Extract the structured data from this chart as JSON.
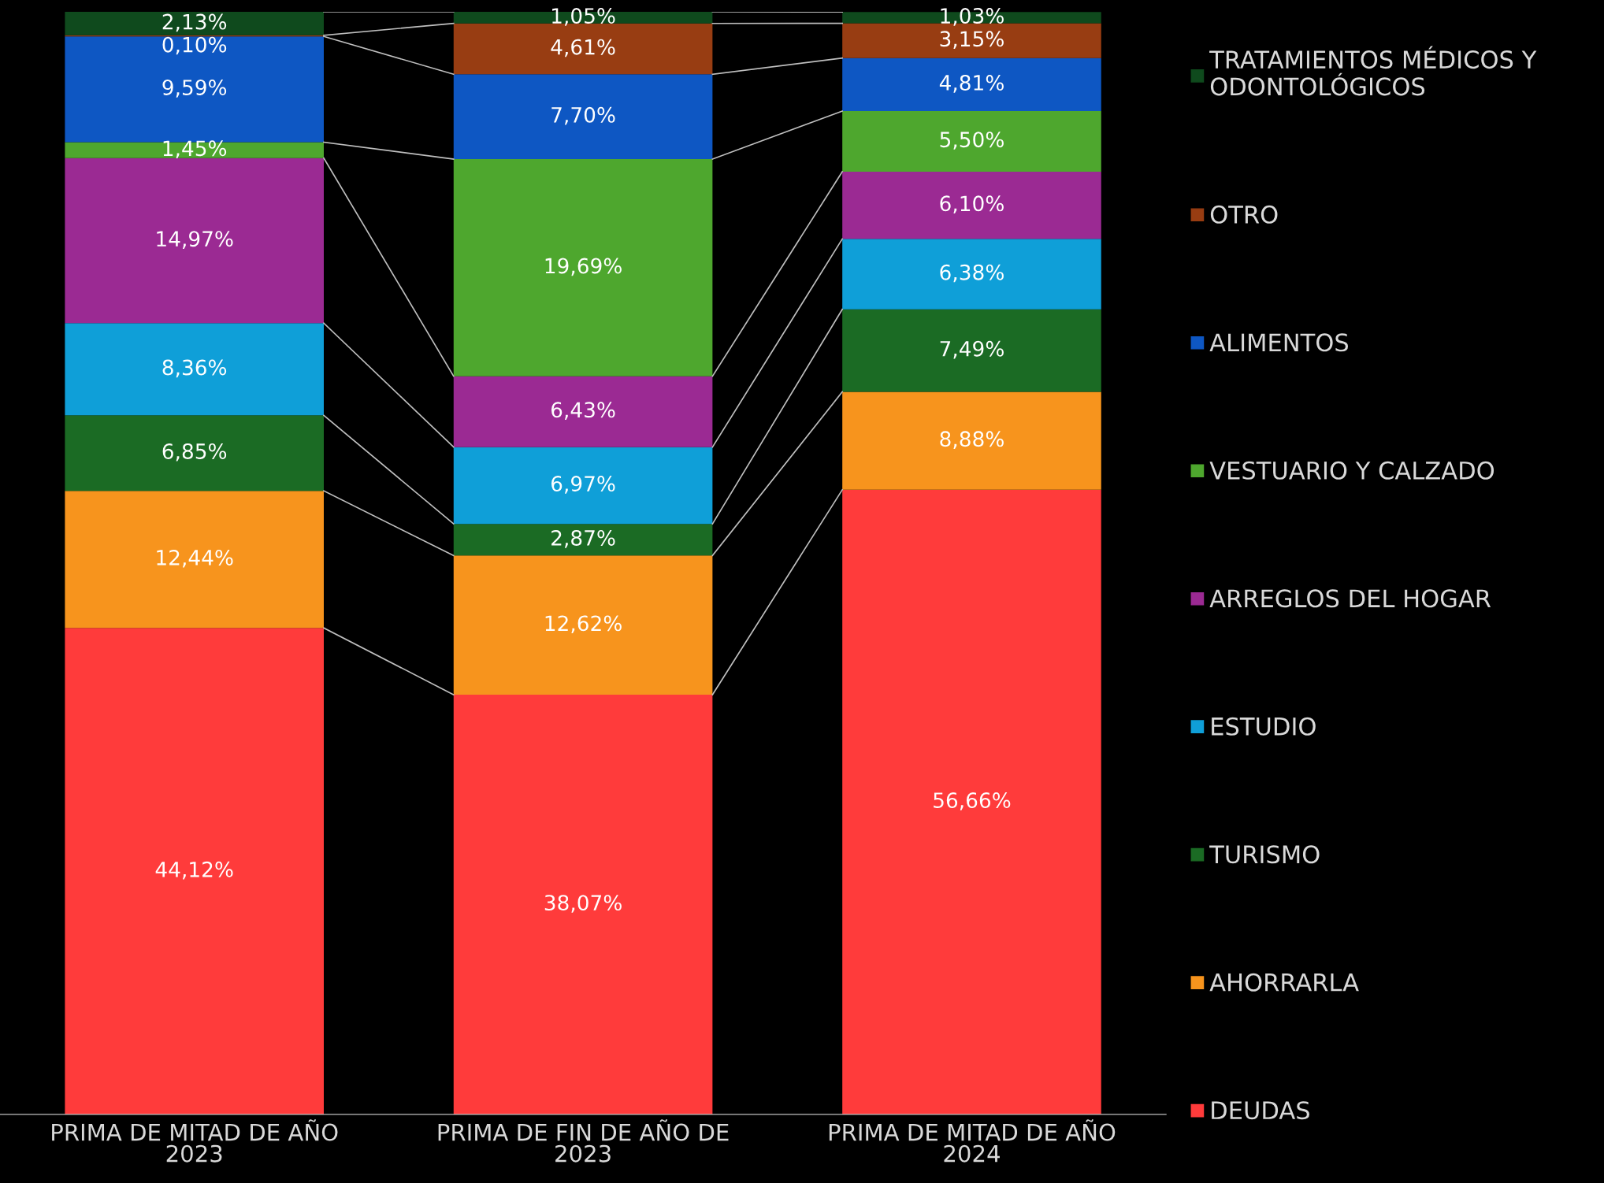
{
  "chart_data": {
    "type": "bar",
    "stacked": true,
    "legend": "right",
    "grid": false,
    "tick_labels": "x",
    "categories": [
      "PRIMA DE MITAD DE AÑO\n2023",
      "PRIMA DE FIN DE AÑO DE\n2023",
      "PRIMA DE MITAD DE AÑO\n2024"
    ],
    "series": [
      {
        "name": "DEUDAS",
        "color": "#ff3b3b",
        "values": [
          44.12,
          38.07,
          56.66
        ],
        "value_labels": [
          "44,12%",
          "38,07%",
          "56,66%"
        ]
      },
      {
        "name": "AHORRARLA",
        "color": "#f7941d",
        "values": [
          12.44,
          12.62,
          8.88
        ],
        "value_labels": [
          "12,44%",
          "12,62%",
          "8,88%"
        ]
      },
      {
        "name": "TURISMO",
        "color": "#1b6b24",
        "values": [
          6.85,
          2.87,
          7.49
        ],
        "value_labels": [
          "6,85%",
          "2,87%",
          "7,49%"
        ]
      },
      {
        "name": "ESTUDIO",
        "color": "#0f9fd8",
        "values": [
          8.36,
          6.97,
          6.38
        ],
        "value_labels": [
          "8,36%",
          "6,97%",
          "6,38%"
        ]
      },
      {
        "name": "ARREGLOS DEL HOGAR",
        "color": "#9b2a93",
        "values": [
          14.97,
          6.43,
          6.1
        ],
        "value_labels": [
          "14,97%",
          "6,43%",
          "6,10%"
        ]
      },
      {
        "name": "VESTUARIO Y CALZADO",
        "color": "#4ea72e",
        "values": [
          1.45,
          19.69,
          5.5
        ],
        "value_labels": [
          "1,45%",
          "19,69%",
          "5,50%"
        ]
      },
      {
        "name": "ALIMENTOS",
        "color": "#0e57c3",
        "values": [
          9.59,
          7.7,
          4.81
        ],
        "value_labels": [
          "9,59%",
          "7,70%",
          "4,81%"
        ]
      },
      {
        "name": "OTRO",
        "color": "#983d12",
        "values": [
          0.1,
          4.61,
          3.15
        ],
        "value_labels": [
          "0,10%",
          "4,61%",
          "3,15%"
        ]
      },
      {
        "name": "TRATAMIENTOS MÉDICOS Y\nODONTOLÓGICOS",
        "color": "#0f4a1d",
        "values": [
          2.13,
          1.05,
          1.03
        ],
        "value_labels": [
          "2,13%",
          "1,05%",
          "1,03%"
        ]
      }
    ]
  }
}
